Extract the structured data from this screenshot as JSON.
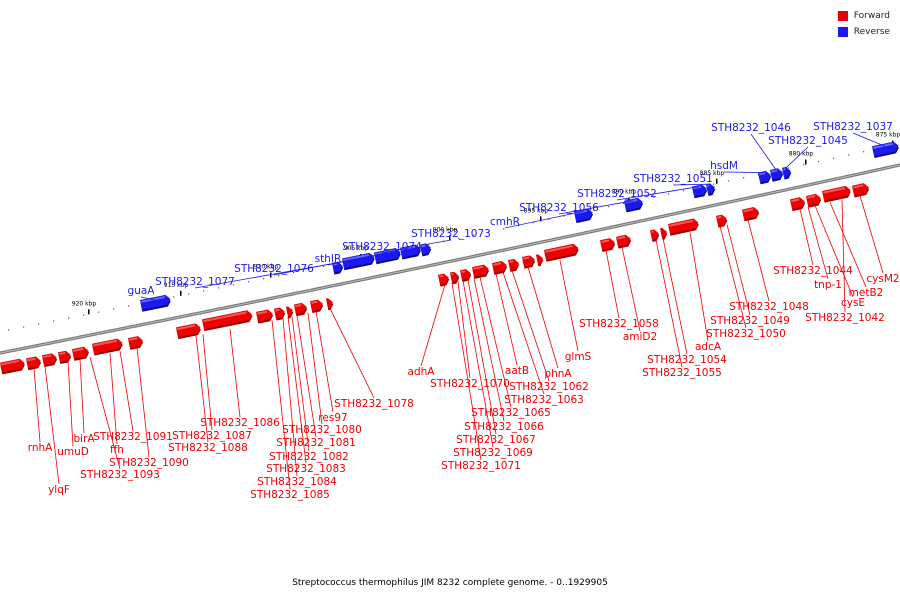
{
  "legend": [
    {
      "label": "Forward",
      "color": "#ee0000"
    },
    {
      "label": "Reverse",
      "color": "#1a1aee"
    }
  ],
  "caption": "Streptococcus thermophilus JIM 8232 complete genome. - 0..1929905",
  "colors": {
    "forward": "#ee0000",
    "reverse": "#1a1aee",
    "backbone": "#777777"
  },
  "ticks": [
    "920 kbp",
    "915 kbp",
    "910 kbp",
    "905 kbp",
    "900 kbp",
    "895 kbp",
    "890 kbp",
    "885 kbp",
    "880 kbp",
    "875 kbp"
  ],
  "reverse_genes": [
    "guaA",
    "STH8232_1077",
    "STH8232_1076",
    "sthIR",
    "STH8232_1074",
    "STH8232_1073",
    "cmhR",
    "STH8232_1056",
    "STH8232_1052",
    "STH8232_1051",
    "hsdM",
    "STH8232_1046",
    "STH8232_1045",
    "STH8232_1037"
  ],
  "forward_genes": [
    "rnhA",
    "ylqF",
    "umuD",
    "birA",
    "STH8232_1093",
    "ffh",
    "STH8232_1091",
    "STH8232_1090",
    "STH8232_1088",
    "STH8232_1087",
    "STH8232_1086",
    "STH8232_1085",
    "STH8232_1084",
    "STH8232_1083",
    "STH8232_1082",
    "STH8232_1081",
    "STH8232_1080",
    "res97",
    "STH8232_1078",
    "adhA",
    "STH8232_1071",
    "STH8232_1070",
    "STH8232_1069",
    "STH8232_1067",
    "STH8232_1066",
    "STH8232_1065",
    "aatB",
    "STH8232_1063",
    "STH8232_1062",
    "phnA",
    "glmS",
    "STH8232_1058",
    "amiD2",
    "STH8232_1055",
    "STH8232_1054",
    "adcA",
    "STH8232_1050",
    "STH8232_1049",
    "STH8232_1048",
    "STH8232_1044",
    "tnp-1",
    "cysE",
    "metB2",
    "STH8232_1042",
    "cysM2"
  ]
}
